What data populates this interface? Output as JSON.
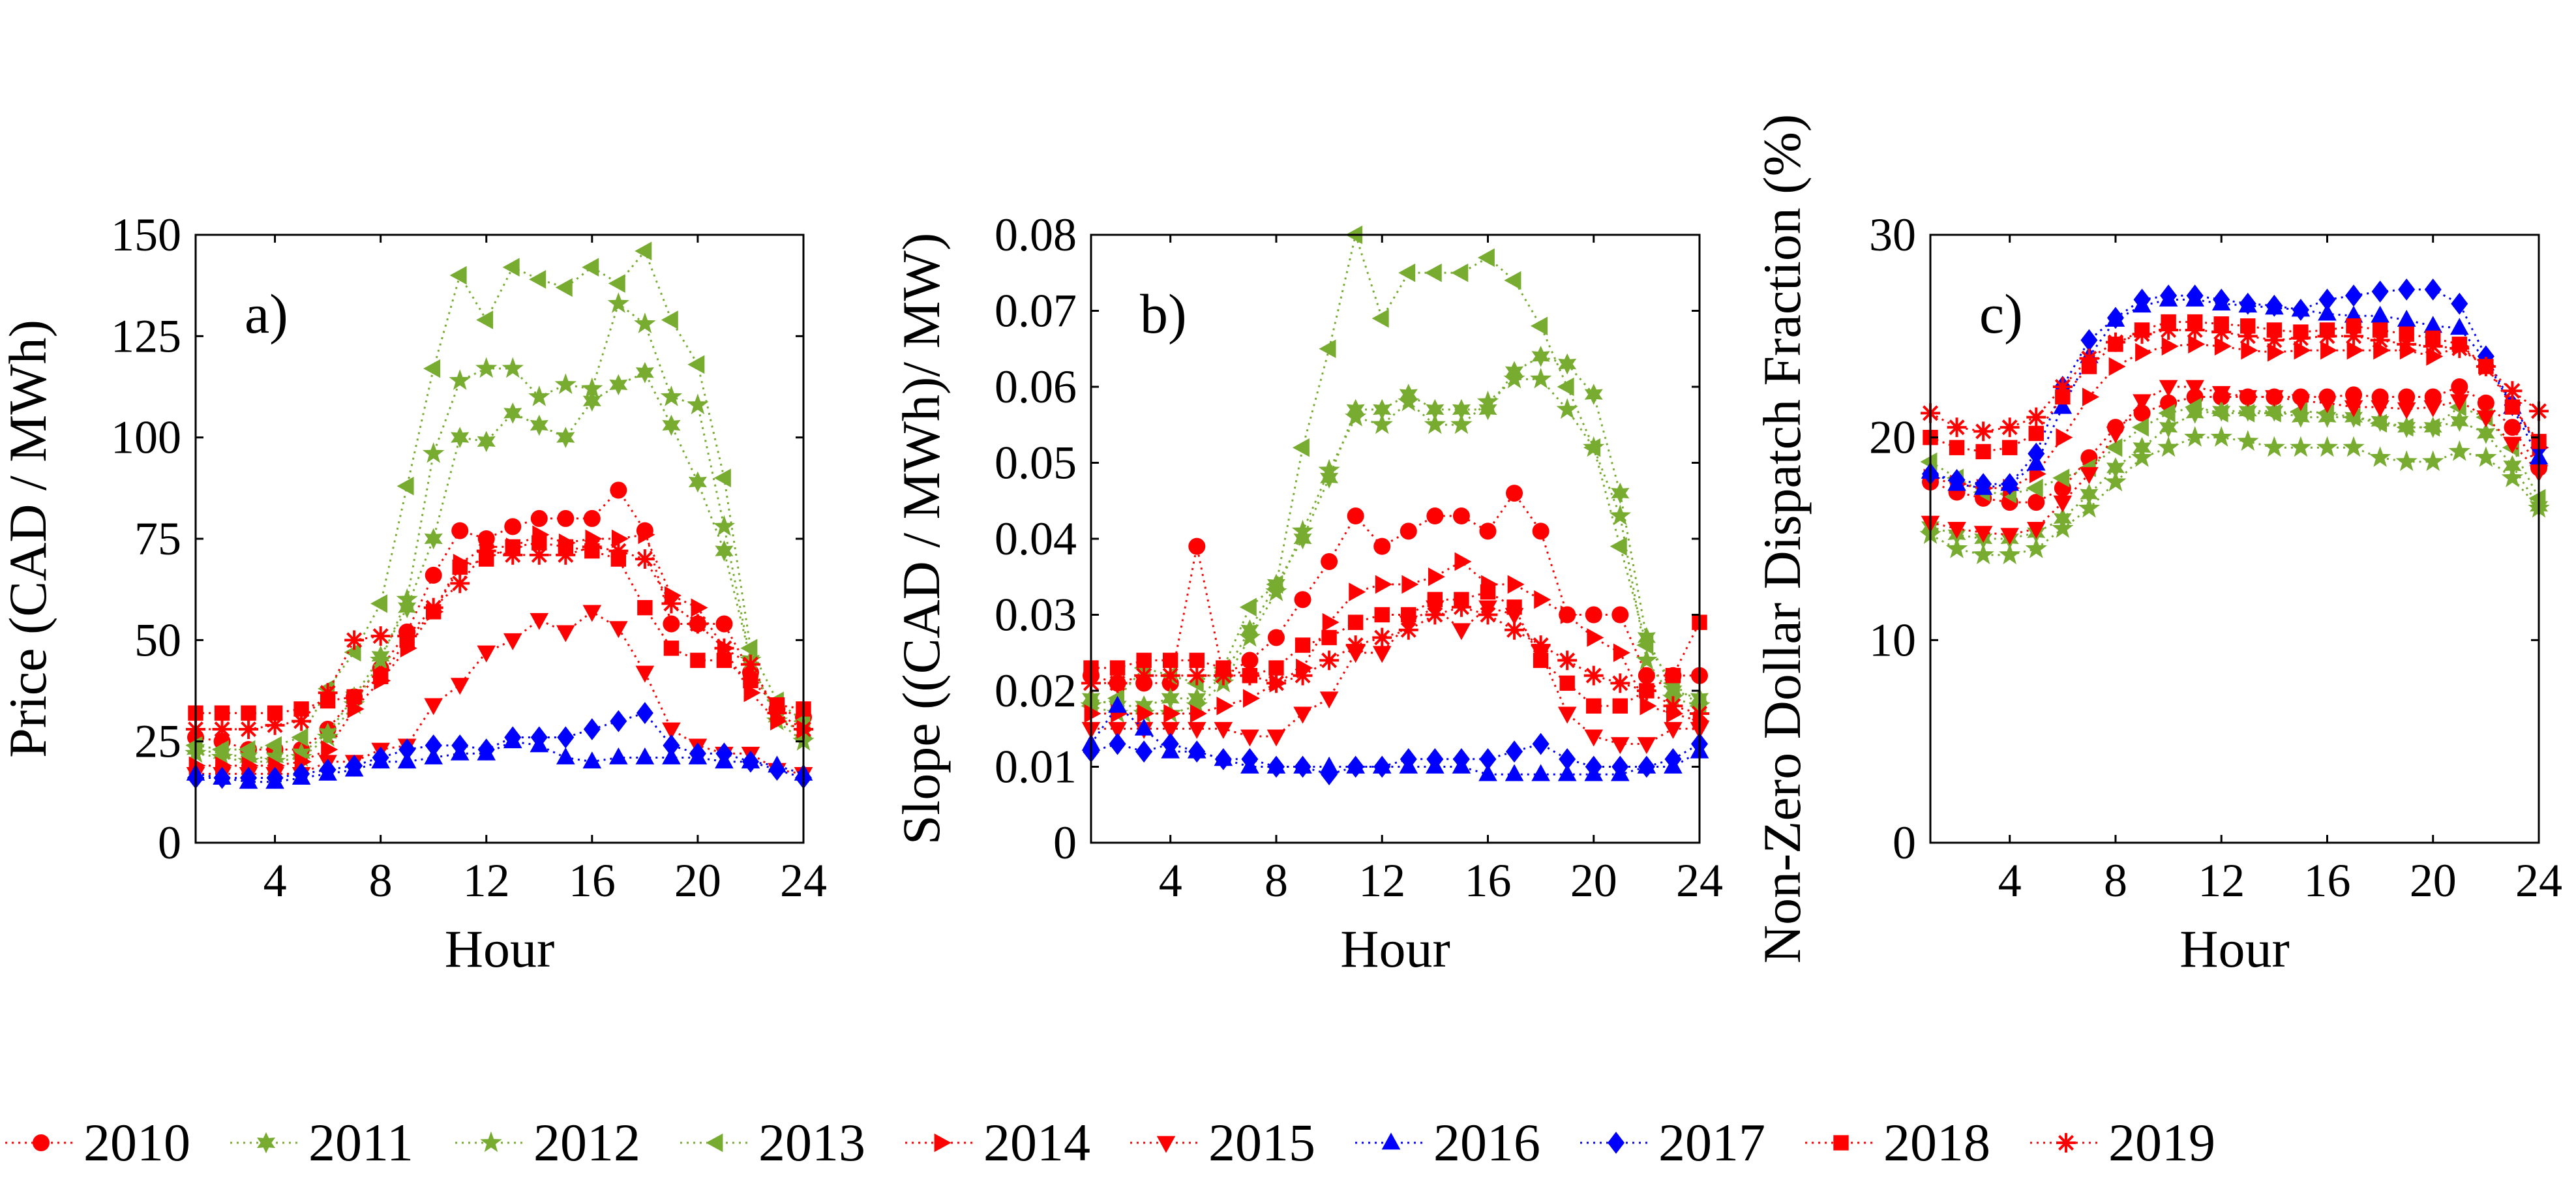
{
  "colors": {
    "red": "#ff0000",
    "green": "#77ac30",
    "blue": "#0000ff",
    "axis": "#000000"
  },
  "chart_data": [
    {
      "type": "line",
      "label": "a)",
      "xlabel": "Hour",
      "ylabel": "Price (CAD / MWh)",
      "xlim": [
        1,
        24
      ],
      "ylim": [
        0,
        150
      ],
      "xticks": [
        "4",
        "8",
        "12",
        "16",
        "20",
        "24"
      ],
      "yticks": [
        "0",
        "25",
        "50",
        "75",
        "100",
        "125",
        "150"
      ],
      "x": [
        1,
        2,
        3,
        4,
        5,
        6,
        7,
        8,
        9,
        10,
        11,
        12,
        13,
        14,
        15,
        16,
        17,
        18,
        19,
        20,
        21,
        22,
        23,
        24
      ],
      "series": [
        {
          "name": "2010",
          "values": [
            26,
            25,
            23,
            23,
            23,
            28,
            36,
            43,
            52,
            66,
            77,
            75,
            78,
            80,
            80,
            80,
            87,
            77,
            54,
            54,
            54,
            42,
            33,
            31
          ]
        },
        {
          "name": "2011",
          "values": [
            23,
            22,
            21,
            21,
            22,
            27,
            36,
            46,
            58,
            75,
            100,
            99,
            106,
            103,
            100,
            109,
            113,
            116,
            103,
            89,
            72,
            45,
            31,
            27
          ]
        },
        {
          "name": "2012",
          "values": [
            22,
            21,
            20,
            20,
            21,
            26,
            34,
            45,
            60,
            96,
            114,
            117,
            117,
            110,
            113,
            112,
            133,
            128,
            110,
            108,
            78,
            45,
            30,
            25
          ]
        },
        {
          "name": "2013",
          "values": [
            24,
            23,
            23,
            24,
            26,
            38,
            47,
            59,
            88,
            117,
            140,
            129,
            142,
            139,
            137,
            142,
            138,
            146,
            129,
            118,
            90,
            48,
            35,
            30
          ]
        },
        {
          "name": "2014",
          "values": [
            19,
            19,
            19,
            19,
            20,
            23,
            33,
            40,
            48,
            57,
            69,
            73,
            73,
            76,
            74,
            75,
            75,
            76,
            61,
            58,
            48,
            37,
            30,
            28
          ]
        },
        {
          "name": "2015",
          "values": [
            17,
            17,
            17,
            17,
            17,
            20,
            20,
            23,
            24,
            34,
            39,
            47,
            50,
            55,
            52,
            57,
            53,
            42,
            28,
            24,
            22,
            22,
            18,
            17
          ]
        },
        {
          "name": "2016",
          "values": [
            17,
            16,
            15,
            15,
            16,
            17,
            18,
            20,
            20,
            21,
            22,
            22,
            25,
            24,
            21,
            20,
            21,
            21,
            21,
            21,
            20,
            20,
            19,
            17
          ]
        },
        {
          "name": "2017",
          "values": [
            16,
            16,
            16,
            16,
            17,
            18,
            19,
            21,
            23,
            24,
            24,
            23,
            26,
            26,
            26,
            28,
            30,
            32,
            24,
            22,
            22,
            20,
            18,
            16
          ]
        },
        {
          "name": "2018",
          "values": [
            32,
            32,
            32,
            32,
            33,
            35,
            36,
            41,
            50,
            57,
            68,
            70,
            73,
            74,
            73,
            72,
            70,
            58,
            48,
            45,
            45,
            40,
            34,
            33
          ]
        },
        {
          "name": "2019",
          "values": [
            28,
            28,
            28,
            29,
            30,
            37,
            50,
            51,
            51,
            58,
            64,
            72,
            71,
            71,
            71,
            73,
            72,
            70,
            59,
            54,
            48,
            44,
            32,
            28
          ]
        }
      ]
    },
    {
      "type": "line",
      "label": "b)",
      "xlabel": "Hour",
      "ylabel": "Slope ((CAD / MWh)/ MW)",
      "xlim": [
        1,
        24
      ],
      "ylim": [
        0,
        0.08
      ],
      "xticks": [
        "4",
        "8",
        "12",
        "16",
        "20",
        "24"
      ],
      "yticks": [
        "0",
        "0.01",
        "0.02",
        "0.03",
        "0.04",
        "0.05",
        "0.06",
        "0.07",
        "0.08"
      ],
      "x": [
        1,
        2,
        3,
        4,
        5,
        6,
        7,
        8,
        9,
        10,
        11,
        12,
        13,
        14,
        15,
        16,
        17,
        18,
        19,
        20,
        21,
        22,
        23,
        24
      ],
      "series": [
        {
          "name": "2010",
          "values": [
            0.022,
            0.021,
            0.021,
            0.021,
            0.039,
            0.022,
            0.024,
            0.027,
            0.032,
            0.037,
            0.043,
            0.039,
            0.041,
            0.043,
            0.043,
            0.041,
            0.046,
            0.041,
            0.03,
            0.03,
            0.03,
            0.022,
            0.022,
            0.022
          ]
        },
        {
          "name": "2011",
          "values": [
            0.019,
            0.018,
            0.018,
            0.019,
            0.019,
            0.022,
            0.028,
            0.034,
            0.04,
            0.048,
            0.057,
            0.057,
            0.059,
            0.057,
            0.057,
            0.057,
            0.062,
            0.064,
            0.063,
            0.059,
            0.046,
            0.027,
            0.02,
            0.019
          ]
        },
        {
          "name": "2012",
          "values": [
            0.018,
            0.017,
            0.017,
            0.017,
            0.018,
            0.021,
            0.027,
            0.033,
            0.041,
            0.049,
            0.056,
            0.055,
            0.058,
            0.055,
            0.055,
            0.058,
            0.061,
            0.061,
            0.057,
            0.052,
            0.043,
            0.024,
            0.019,
            0.018
          ]
        },
        {
          "name": "2013",
          "values": [
            0.018,
            0.019,
            0.023,
            0.022,
            0.021,
            0.023,
            0.031,
            0.034,
            0.052,
            0.065,
            0.08,
            0.069,
            0.075,
            0.075,
            0.075,
            0.077,
            0.074,
            0.068,
            0.06,
            0.052,
            0.039,
            0.026,
            0.021,
            0.018
          ]
        },
        {
          "name": "2014",
          "values": [
            0.017,
            0.017,
            0.017,
            0.017,
            0.017,
            0.018,
            0.019,
            0.021,
            0.023,
            0.029,
            0.033,
            0.034,
            0.034,
            0.035,
            0.037,
            0.034,
            0.034,
            0.032,
            0.03,
            0.027,
            0.025,
            0.018,
            0.017,
            0.016
          ]
        },
        {
          "name": "2015",
          "values": [
            0.015,
            0.015,
            0.015,
            0.015,
            0.015,
            0.015,
            0.014,
            0.014,
            0.017,
            0.019,
            0.025,
            0.025,
            0.029,
            0.031,
            0.028,
            0.031,
            0.03,
            0.025,
            0.017,
            0.014,
            0.013,
            0.013,
            0.015,
            0.015
          ]
        },
        {
          "name": "2016",
          "values": [
            0.013,
            0.018,
            0.015,
            0.012,
            0.012,
            0.011,
            0.01,
            0.01,
            0.01,
            0.01,
            0.01,
            0.01,
            0.01,
            0.01,
            0.01,
            0.009,
            0.009,
            0.009,
            0.009,
            0.009,
            0.009,
            0.01,
            0.01,
            0.012
          ]
        },
        {
          "name": "2017",
          "values": [
            0.012,
            0.013,
            0.012,
            0.013,
            0.012,
            0.011,
            0.011,
            0.01,
            0.01,
            0.009,
            0.01,
            0.01,
            0.011,
            0.011,
            0.011,
            0.011,
            0.012,
            0.013,
            0.011,
            0.01,
            0.01,
            0.01,
            0.011,
            0.013
          ]
        },
        {
          "name": "2018",
          "values": [
            0.023,
            0.023,
            0.024,
            0.024,
            0.024,
            0.023,
            0.022,
            0.023,
            0.026,
            0.027,
            0.029,
            0.03,
            0.03,
            0.032,
            0.032,
            0.033,
            0.031,
            0.024,
            0.021,
            0.018,
            0.018,
            0.02,
            0.022,
            0.029
          ]
        },
        {
          "name": "2019",
          "values": [
            0.021,
            0.021,
            0.022,
            0.022,
            0.022,
            0.022,
            0.022,
            0.021,
            0.022,
            0.024,
            0.026,
            0.027,
            0.028,
            0.03,
            0.031,
            0.03,
            0.028,
            0.026,
            0.024,
            0.022,
            0.021,
            0.02,
            0.018,
            0.017
          ]
        }
      ]
    },
    {
      "type": "line",
      "label": "c)",
      "xlabel": "Hour",
      "ylabel": "Non-Zero Dollar Dispatch Fraction (%)",
      "xlim": [
        1,
        24
      ],
      "ylim": [
        0,
        30
      ],
      "xticks": [
        "4",
        "8",
        "12",
        "16",
        "20",
        "24"
      ],
      "yticks": [
        "0",
        "10",
        "20",
        "30"
      ],
      "x": [
        1,
        2,
        3,
        4,
        5,
        6,
        7,
        8,
        9,
        10,
        11,
        12,
        13,
        14,
        15,
        16,
        17,
        18,
        19,
        20,
        21,
        22,
        23,
        24
      ],
      "series": [
        {
          "name": "2010",
          "values": [
            17.8,
            17.3,
            17.0,
            16.8,
            16.8,
            17.5,
            19.0,
            20.5,
            21.2,
            21.7,
            22.0,
            22.0,
            22.0,
            22.0,
            22.0,
            22.0,
            22.1,
            22.0,
            22.0,
            22.0,
            22.5,
            21.7,
            20.5,
            18.5
          ]
        },
        {
          "name": "2011",
          "values": [
            15.6,
            15.2,
            15.0,
            15.0,
            15.3,
            16.0,
            17.2,
            18.5,
            19.5,
            20.5,
            21.2,
            21.3,
            21.3,
            21.3,
            21.0,
            21.0,
            21.0,
            20.8,
            20.5,
            20.5,
            20.8,
            20.2,
            18.6,
            16.6
          ]
        },
        {
          "name": "2012",
          "values": [
            15.2,
            14.5,
            14.2,
            14.2,
            14.5,
            15.5,
            16.5,
            17.8,
            19.0,
            19.5,
            20.0,
            20.0,
            19.8,
            19.5,
            19.5,
            19.5,
            19.5,
            19.0,
            18.8,
            18.8,
            19.3,
            19.0,
            18.0,
            16.5
          ]
        },
        {
          "name": "2013",
          "values": [
            18.8,
            18.0,
            17.3,
            17.2,
            17.5,
            18.0,
            18.5,
            19.5,
            20.5,
            21.2,
            21.5,
            21.2,
            21.2,
            21.2,
            21.3,
            21.2,
            21.0,
            20.7,
            20.5,
            20.5,
            21.5,
            21.0,
            19.5,
            17.0
          ]
        },
        {
          "name": "2014",
          "values": [
            18.0,
            17.7,
            17.5,
            17.5,
            18.2,
            20.0,
            22.0,
            23.5,
            24.2,
            24.5,
            24.6,
            24.5,
            24.3,
            24.2,
            24.3,
            24.3,
            24.3,
            24.3,
            24.3,
            24.0,
            24.5,
            23.5,
            21.7,
            19.5
          ]
        },
        {
          "name": "2015",
          "values": [
            15.8,
            15.5,
            15.3,
            15.2,
            15.5,
            16.8,
            18.2,
            20.2,
            21.8,
            22.5,
            22.5,
            22.2,
            22.0,
            22.0,
            21.8,
            21.7,
            21.5,
            21.5,
            21.4,
            21.5,
            21.8,
            21.0,
            19.7,
            18.3
          ]
        },
        {
          "name": "2016",
          "values": [
            18.3,
            17.7,
            17.5,
            17.7,
            18.7,
            21.5,
            24.0,
            25.8,
            26.5,
            26.8,
            26.8,
            26.6,
            26.5,
            26.4,
            26.3,
            26.1,
            26.0,
            26.0,
            25.8,
            25.5,
            25.4,
            23.8,
            21.5,
            19.0
          ]
        },
        {
          "name": "2017",
          "values": [
            18.2,
            17.9,
            17.7,
            17.7,
            19.2,
            22.5,
            24.8,
            25.9,
            26.8,
            27.0,
            27.0,
            26.8,
            26.6,
            26.5,
            26.3,
            26.8,
            27.0,
            27.2,
            27.3,
            27.3,
            26.6,
            24.0,
            21.6,
            19.5
          ]
        },
        {
          "name": "2018",
          "values": [
            20.0,
            19.5,
            19.3,
            19.5,
            20.2,
            22.0,
            23.5,
            24.6,
            25.3,
            25.7,
            25.7,
            25.6,
            25.5,
            25.3,
            25.2,
            25.3,
            25.5,
            25.3,
            25.1,
            24.9,
            24.6,
            23.5,
            21.5,
            19.8
          ]
        },
        {
          "name": "2019",
          "values": [
            21.2,
            20.5,
            20.3,
            20.5,
            21.0,
            22.5,
            23.9,
            24.7,
            25.1,
            25.3,
            25.3,
            25.2,
            25.0,
            24.8,
            24.9,
            25.0,
            25.0,
            24.8,
            24.6,
            24.5,
            24.4,
            23.5,
            22.3,
            21.3
          ]
        }
      ]
    }
  ],
  "legend": {
    "items": [
      {
        "name": "2010"
      },
      {
        "name": "2011"
      },
      {
        "name": "2012"
      },
      {
        "name": "2013"
      },
      {
        "name": "2014"
      },
      {
        "name": "2015"
      },
      {
        "name": "2016"
      },
      {
        "name": "2017"
      },
      {
        "name": "2018"
      },
      {
        "name": "2019"
      }
    ]
  }
}
